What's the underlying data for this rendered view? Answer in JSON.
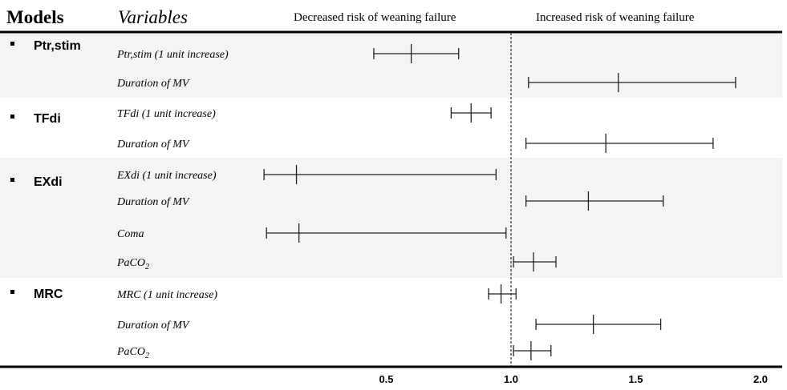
{
  "header": {
    "models_label": "Models",
    "variables_label": "Variables",
    "decreased_label": "Decreased risk of weaning failure",
    "increased_label": "Increased risk of weaning failure"
  },
  "chart_data": {
    "type": "forest",
    "reference_line": 1.0,
    "reference_style": "dashed",
    "xlim": [
      0.0,
      2.1
    ],
    "xticks": [
      "0.5",
      "1.0",
      "1.5",
      "2.0"
    ],
    "groups": [
      {
        "model": "Ptr,stim",
        "shaded": true,
        "rows": [
          {
            "label": "Ptr,stim  (1 unit increase)",
            "estimate": 0.6,
            "lower": 0.45,
            "upper": 0.79
          },
          {
            "label": "Duration of MV",
            "estimate": 1.43,
            "lower": 1.07,
            "upper": 1.9
          }
        ]
      },
      {
        "model": "TFdi",
        "shaded": false,
        "rows": [
          {
            "label": "TFdi  (1 unit increase)",
            "estimate": 0.84,
            "lower": 0.76,
            "upper": 0.92
          },
          {
            "label": "Duration of MV",
            "estimate": 1.38,
            "lower": 1.06,
            "upper": 1.81
          }
        ]
      },
      {
        "model": "EXdi",
        "shaded": true,
        "rows": [
          {
            "label": "EXdi (1 unit increase)",
            "estimate": 0.14,
            "lower": 0.01,
            "upper": 0.94
          },
          {
            "label": "Duration of MV",
            "estimate": 1.31,
            "lower": 1.06,
            "upper": 1.61
          },
          {
            "label": "Coma",
            "estimate": 0.15,
            "lower": 0.02,
            "upper": 0.98
          },
          {
            "label": "PaCO",
            "label_sub": "2",
            "estimate": 1.09,
            "lower": 1.01,
            "upper": 1.18
          }
        ]
      },
      {
        "model": "MRC",
        "shaded": false,
        "rows": [
          {
            "label": "MRC (1 unit increase)",
            "estimate": 0.96,
            "lower": 0.91,
            "upper": 1.02
          },
          {
            "label": "Duration of MV",
            "estimate": 1.33,
            "lower": 1.1,
            "upper": 1.6
          },
          {
            "label": "PaCO",
            "label_sub": "2",
            "estimate": 1.08,
            "lower": 1.01,
            "upper": 1.16
          }
        ]
      }
    ]
  }
}
